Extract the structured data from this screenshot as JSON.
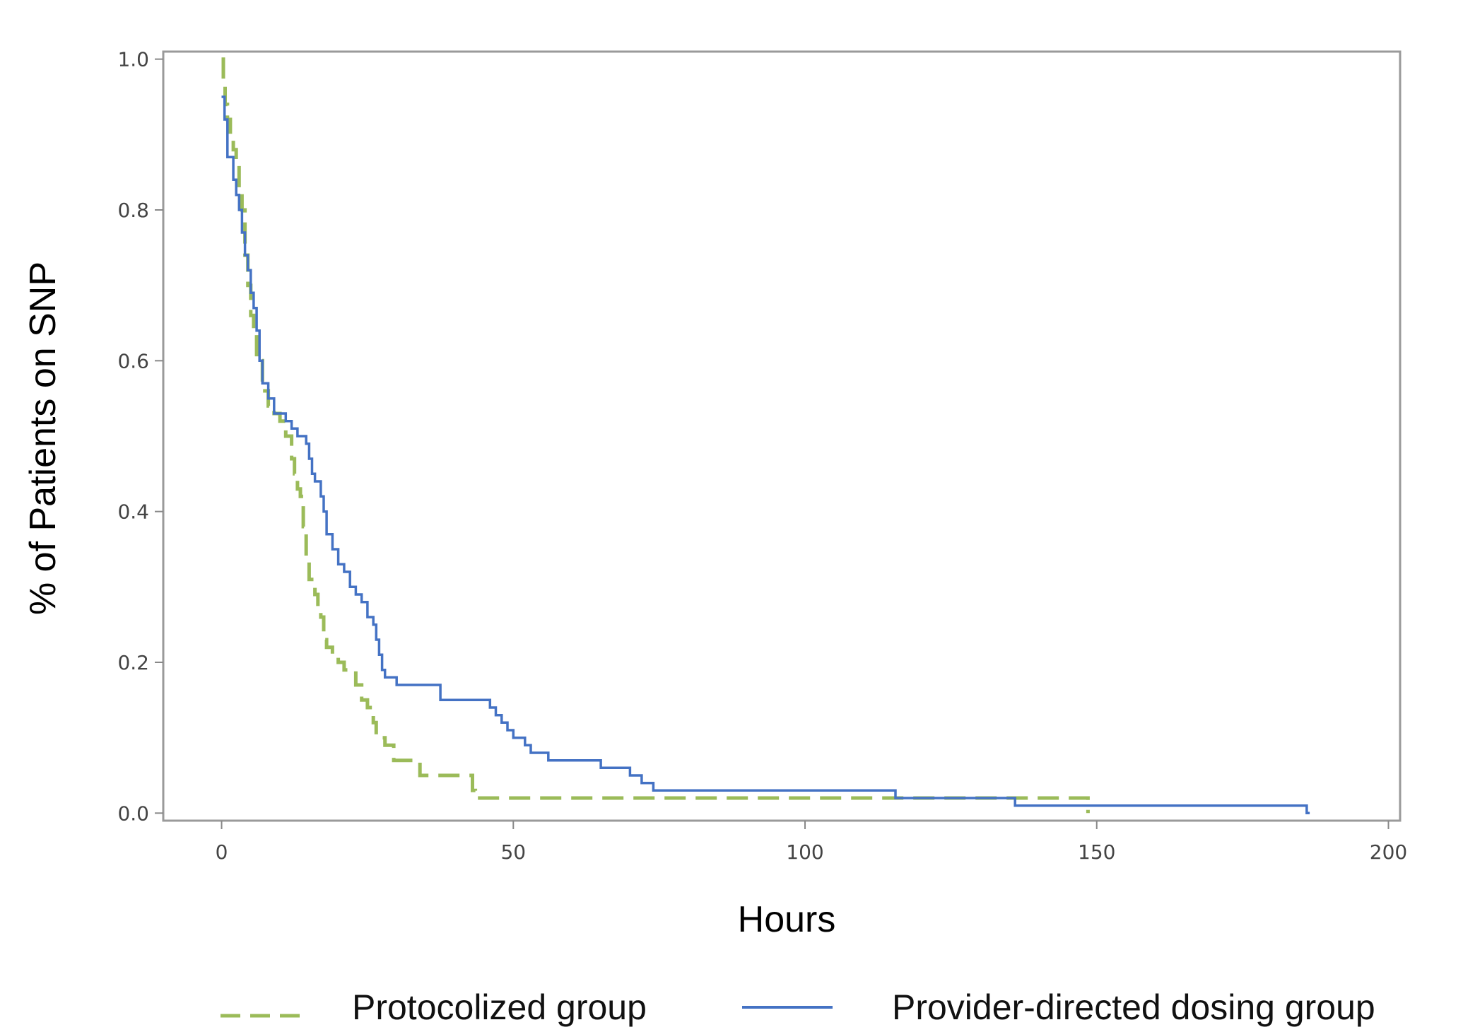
{
  "chart_data": {
    "type": "line",
    "xlabel": "Hours",
    "ylabel": "% of Patients on SNP",
    "xlim": [
      -10,
      202
    ],
    "ylim": [
      -0.01,
      1.01
    ],
    "x_ticks": [
      "0",
      "50",
      "100",
      "150",
      "200"
    ],
    "y_ticks": [
      "0.0",
      "0.2",
      "0.4",
      "0.6",
      "0.8",
      "1.0"
    ],
    "legend_position": "bottom",
    "grid": false,
    "series": [
      {
        "name": "Protocolized group",
        "color": "#9bbb59",
        "style": "dashed",
        "steps": [
          [
            0,
            1.0
          ],
          [
            0.3,
            0.97
          ],
          [
            0.6,
            0.94
          ],
          [
            1,
            0.92
          ],
          [
            1.5,
            0.9
          ],
          [
            2,
            0.88
          ],
          [
            2.5,
            0.86
          ],
          [
            3,
            0.83
          ],
          [
            3.5,
            0.8
          ],
          [
            4,
            0.74
          ],
          [
            4.5,
            0.7
          ],
          [
            5,
            0.66
          ],
          [
            5.5,
            0.64
          ],
          [
            6,
            0.6
          ],
          [
            7,
            0.56
          ],
          [
            8,
            0.54
          ],
          [
            9,
            0.53
          ],
          [
            10,
            0.52
          ],
          [
            11,
            0.5
          ],
          [
            12,
            0.47
          ],
          [
            12.5,
            0.45
          ],
          [
            13,
            0.43
          ],
          [
            13.5,
            0.42
          ],
          [
            14,
            0.38
          ],
          [
            14.5,
            0.34
          ],
          [
            15,
            0.31
          ],
          [
            16,
            0.29
          ],
          [
            16.5,
            0.27
          ],
          [
            17,
            0.26
          ],
          [
            17.5,
            0.23
          ],
          [
            18,
            0.22
          ],
          [
            19,
            0.21
          ],
          [
            20,
            0.2
          ],
          [
            21,
            0.19
          ],
          [
            23,
            0.17
          ],
          [
            24,
            0.15
          ],
          [
            25,
            0.14
          ],
          [
            26,
            0.12
          ],
          [
            26.5,
            0.1
          ],
          [
            28,
            0.09
          ],
          [
            29.5,
            0.07
          ],
          [
            34,
            0.05
          ],
          [
            38,
            0.05
          ],
          [
            43,
            0.03
          ],
          [
            43.5,
            0.02
          ],
          [
            148.5,
            0.0
          ]
        ],
        "end_x": 148.5
      },
      {
        "name": "Provider-directed dosing group",
        "color": "#4472c4",
        "style": "solid",
        "steps": [
          [
            0,
            0.95
          ],
          [
            0.5,
            0.92
          ],
          [
            1,
            0.87
          ],
          [
            2,
            0.84
          ],
          [
            2.5,
            0.82
          ],
          [
            3,
            0.8
          ],
          [
            3.5,
            0.77
          ],
          [
            4,
            0.74
          ],
          [
            4.5,
            0.72
          ],
          [
            5,
            0.69
          ],
          [
            5.5,
            0.67
          ],
          [
            6,
            0.64
          ],
          [
            6.5,
            0.6
          ],
          [
            7,
            0.57
          ],
          [
            8,
            0.55
          ],
          [
            9,
            0.53
          ],
          [
            11,
            0.52
          ],
          [
            12,
            0.51
          ],
          [
            13,
            0.5
          ],
          [
            14.5,
            0.49
          ],
          [
            15,
            0.47
          ],
          [
            15.5,
            0.45
          ],
          [
            16,
            0.44
          ],
          [
            17,
            0.42
          ],
          [
            17.5,
            0.4
          ],
          [
            18,
            0.37
          ],
          [
            19,
            0.35
          ],
          [
            20,
            0.33
          ],
          [
            21,
            0.32
          ],
          [
            22,
            0.3
          ],
          [
            23,
            0.29
          ],
          [
            24,
            0.28
          ],
          [
            25,
            0.26
          ],
          [
            26,
            0.25
          ],
          [
            26.5,
            0.23
          ],
          [
            27,
            0.21
          ],
          [
            27.5,
            0.19
          ],
          [
            28,
            0.18
          ],
          [
            30,
            0.17
          ],
          [
            37.5,
            0.15
          ],
          [
            46,
            0.14
          ],
          [
            47,
            0.13
          ],
          [
            48,
            0.12
          ],
          [
            49,
            0.11
          ],
          [
            50,
            0.1
          ],
          [
            52,
            0.09
          ],
          [
            53,
            0.08
          ],
          [
            56,
            0.07
          ],
          [
            65,
            0.06
          ],
          [
            70,
            0.05
          ],
          [
            72,
            0.04
          ],
          [
            74,
            0.03
          ],
          [
            115.5,
            0.02
          ],
          [
            136,
            0.01
          ],
          [
            186,
            0.0
          ]
        ],
        "end_x": 186.5
      }
    ]
  }
}
